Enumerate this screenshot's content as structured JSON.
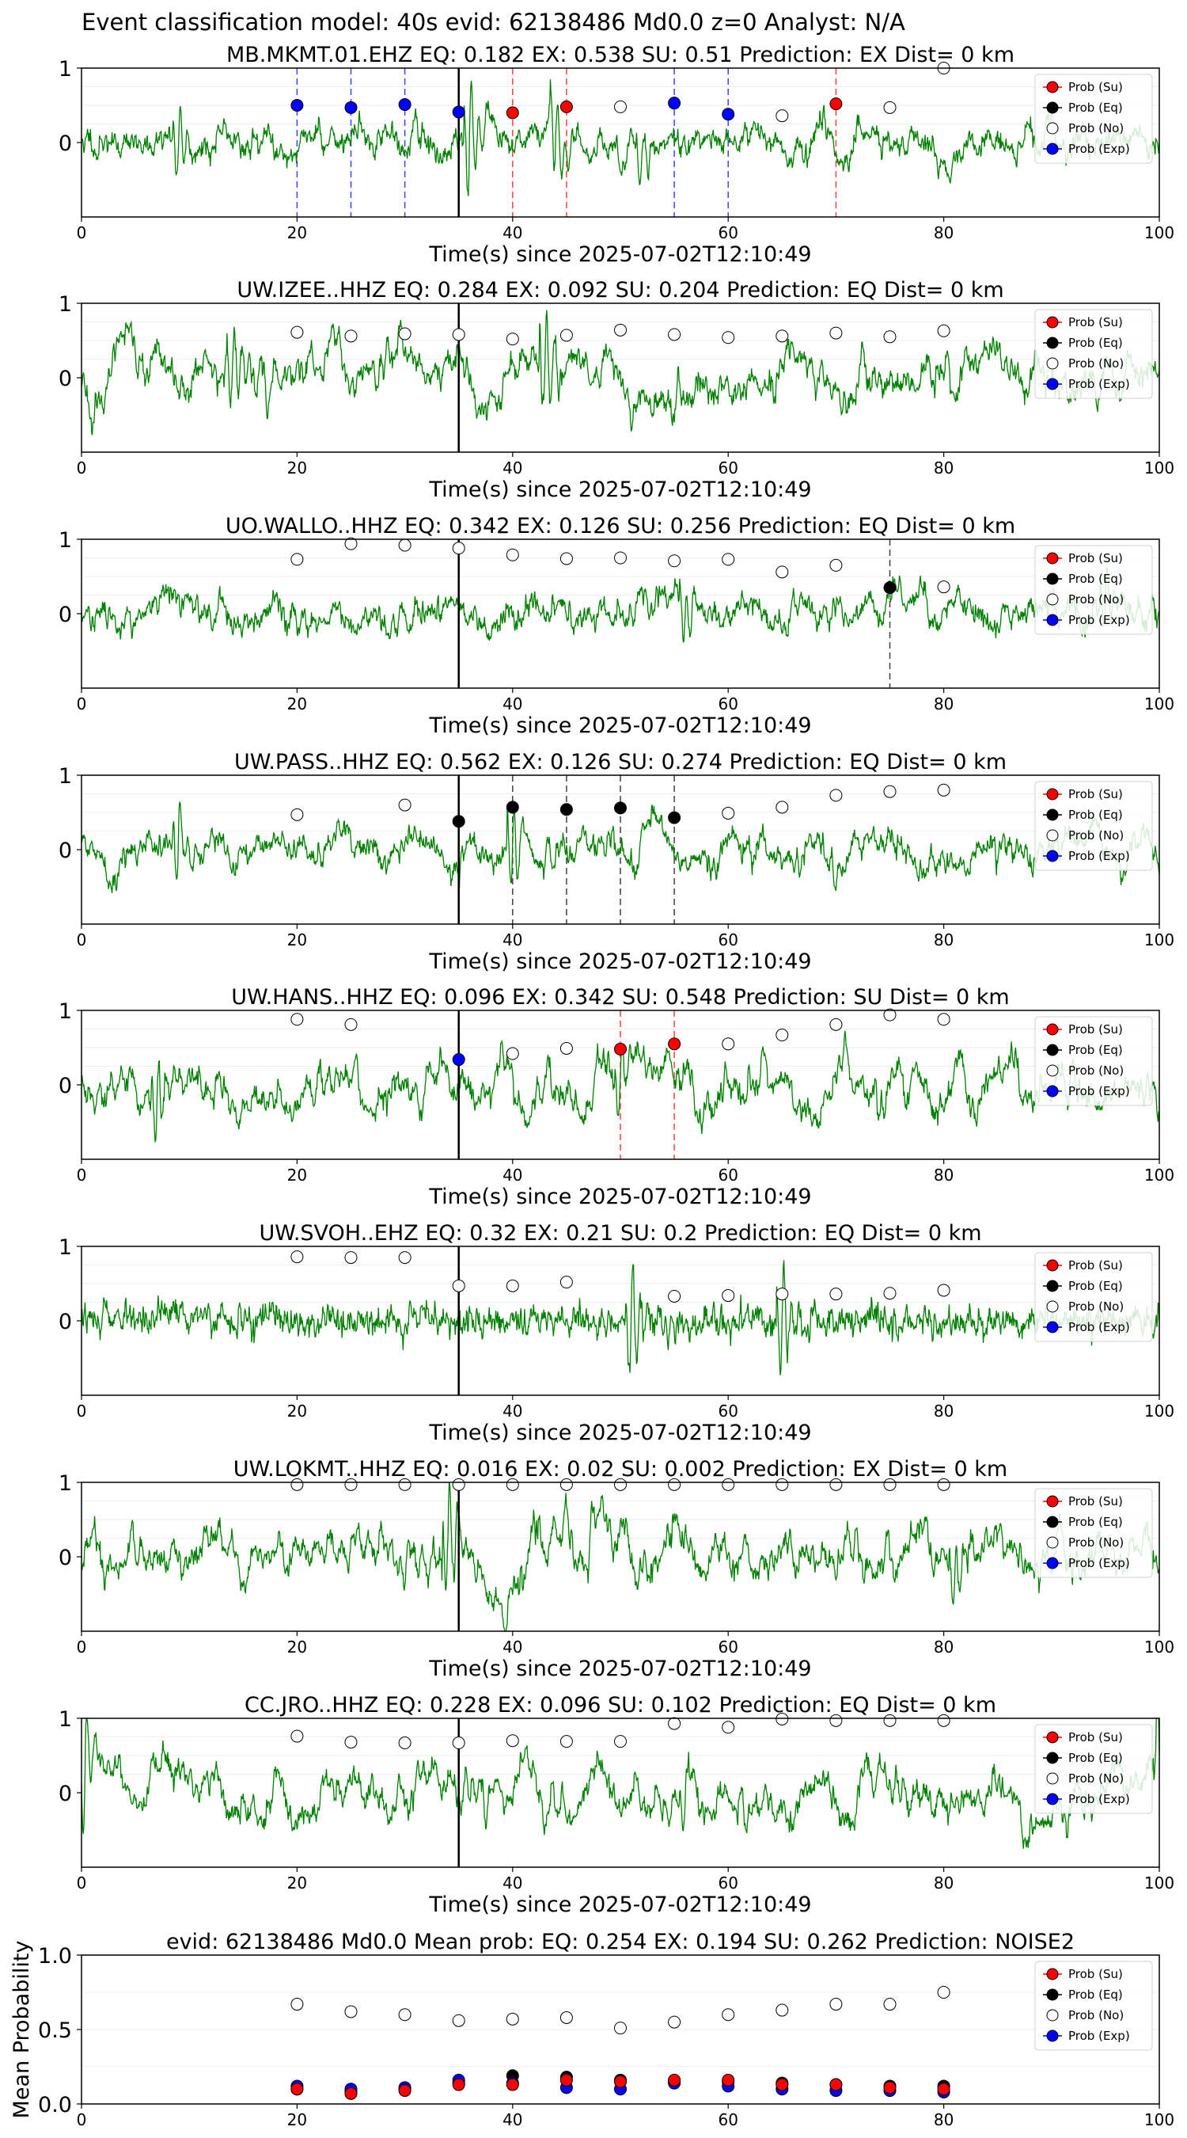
{
  "suptitle": "Event classification model: 40s evid: 62138486 Md0.0 z=0 Analyst: N/A",
  "xlabel": "Time(s) since 2025-07-02T12:10:49",
  "legend_labels": [
    "Prob (Su)",
    "Prob (Eq)",
    "Prob (No)",
    "Prob (Exp)"
  ],
  "colors": {
    "su": "#ff0000",
    "eq": "#000000",
    "no": "#ffffff",
    "exp": "#0000ff",
    "trace": "#008000"
  },
  "chart_data": [
    {
      "type": "line",
      "title": "MB.MKMT.01.EHZ    EQ: 0.182  EX: 0.538  SU: 0.51   Prediction: EX    Dist= 0 km",
      "xlim": [
        0,
        100
      ],
      "ylim": [
        -1,
        1
      ],
      "xticks": [
        "0",
        "20",
        "40",
        "60",
        "80",
        "100"
      ],
      "yticks": [
        "1",
        "0"
      ],
      "pick": 35,
      "seed": 11,
      "noise": "mixed",
      "bursts": [
        [
          9,
          0.5
        ],
        [
          36,
          1.0
        ],
        [
          44,
          0.6
        ],
        [
          52,
          0.4
        ]
      ],
      "points": [
        {
          "x": 20,
          "p": 0.5,
          "c": "exp"
        },
        {
          "x": 25,
          "p": 0.47,
          "c": "exp"
        },
        {
          "x": 30,
          "p": 0.51,
          "c": "exp"
        },
        {
          "x": 35,
          "p": 0.41,
          "c": "exp"
        },
        {
          "x": 40,
          "p": 0.4,
          "c": "su"
        },
        {
          "x": 45,
          "p": 0.48,
          "c": "su"
        },
        {
          "x": 50,
          "p": 0.48,
          "c": "no"
        },
        {
          "x": 55,
          "p": 0.53,
          "c": "exp"
        },
        {
          "x": 60,
          "p": 0.38,
          "c": "exp"
        },
        {
          "x": 65,
          "p": 0.36,
          "c": "no"
        },
        {
          "x": 70,
          "p": 0.52,
          "c": "su"
        },
        {
          "x": 75,
          "p": 0.47,
          "c": "no"
        },
        {
          "x": 80,
          "p": 1.0,
          "c": "no"
        }
      ]
    },
    {
      "type": "line",
      "title": "UW.IZEE..HHZ   EQ: 0.284  EX: 0.092  SU: 0.204   Prediction: EQ    Dist= 0 km",
      "xlim": [
        0,
        100
      ],
      "ylim": [
        -1,
        1
      ],
      "xticks": [
        "0",
        "20",
        "40",
        "60",
        "80",
        "100"
      ],
      "yticks": [
        "1",
        "0"
      ],
      "pick": 35,
      "seed": 23,
      "noise": "slow",
      "bursts": [
        [
          14,
          0.6
        ],
        [
          43,
          0.7
        ]
      ],
      "points": [
        {
          "x": 20,
          "p": 0.61,
          "c": "no"
        },
        {
          "x": 25,
          "p": 0.56,
          "c": "no"
        },
        {
          "x": 30,
          "p": 0.59,
          "c": "no"
        },
        {
          "x": 35,
          "p": 0.58,
          "c": "no"
        },
        {
          "x": 40,
          "p": 0.52,
          "c": "no"
        },
        {
          "x": 45,
          "p": 0.57,
          "c": "no"
        },
        {
          "x": 50,
          "p": 0.64,
          "c": "no"
        },
        {
          "x": 55,
          "p": 0.58,
          "c": "no"
        },
        {
          "x": 60,
          "p": 0.54,
          "c": "no"
        },
        {
          "x": 65,
          "p": 0.56,
          "c": "no"
        },
        {
          "x": 70,
          "p": 0.6,
          "c": "no"
        },
        {
          "x": 75,
          "p": 0.55,
          "c": "no"
        },
        {
          "x": 80,
          "p": 0.63,
          "c": "no"
        }
      ]
    },
    {
      "type": "line",
      "title": "UO.WALLO..HHZ   EQ: 0.342  EX: 0.126  SU: 0.256   Prediction: EQ    Dist= 0 km",
      "xlim": [
        0,
        100
      ],
      "ylim": [
        -1,
        1
      ],
      "xticks": [
        "0",
        "20",
        "40",
        "60",
        "80",
        "100"
      ],
      "yticks": [
        "1",
        "0"
      ],
      "pick": 35,
      "seed": 37,
      "noise": "mixed",
      "bursts": [
        [
          56,
          0.5
        ],
        [
          95,
          0.5
        ]
      ],
      "points": [
        {
          "x": 20,
          "p": 0.73,
          "c": "no"
        },
        {
          "x": 25,
          "p": 0.94,
          "c": "no"
        },
        {
          "x": 30,
          "p": 0.92,
          "c": "no"
        },
        {
          "x": 35,
          "p": 0.88,
          "c": "no"
        },
        {
          "x": 40,
          "p": 0.79,
          "c": "no"
        },
        {
          "x": 45,
          "p": 0.74,
          "c": "no"
        },
        {
          "x": 50,
          "p": 0.75,
          "c": "no"
        },
        {
          "x": 55,
          "p": 0.71,
          "c": "no"
        },
        {
          "x": 60,
          "p": 0.73,
          "c": "no"
        },
        {
          "x": 65,
          "p": 0.56,
          "c": "no"
        },
        {
          "x": 70,
          "p": 0.65,
          "c": "no"
        },
        {
          "x": 75,
          "p": 0.35,
          "c": "eq"
        },
        {
          "x": 80,
          "p": 0.36,
          "c": "no"
        }
      ]
    },
    {
      "type": "line",
      "title": "UW.PASS..HHZ   EQ: 0.562  EX: 0.126  SU: 0.274   Prediction: EQ    Dist= 0 km",
      "xlim": [
        0,
        100
      ],
      "ylim": [
        -1,
        1
      ],
      "xticks": [
        "0",
        "20",
        "40",
        "60",
        "80",
        "100"
      ],
      "yticks": [
        "1",
        "0"
      ],
      "pick": 35,
      "seed": 41,
      "noise": "mixed",
      "bursts": [
        [
          9,
          0.5
        ],
        [
          40,
          0.7
        ]
      ],
      "points": [
        {
          "x": 20,
          "p": 0.47,
          "c": "no"
        },
        {
          "x": 30,
          "p": 0.6,
          "c": "no"
        },
        {
          "x": 35,
          "p": 0.38,
          "c": "eq"
        },
        {
          "x": 40,
          "p": 0.57,
          "c": "eq"
        },
        {
          "x": 45,
          "p": 0.54,
          "c": "eq"
        },
        {
          "x": 50,
          "p": 0.56,
          "c": "eq"
        },
        {
          "x": 55,
          "p": 0.43,
          "c": "eq"
        },
        {
          "x": 60,
          "p": 0.49,
          "c": "no"
        },
        {
          "x": 65,
          "p": 0.57,
          "c": "no"
        },
        {
          "x": 70,
          "p": 0.73,
          "c": "no"
        },
        {
          "x": 75,
          "p": 0.78,
          "c": "no"
        },
        {
          "x": 80,
          "p": 0.8,
          "c": "no"
        }
      ]
    },
    {
      "type": "line",
      "title": "UW.HANS..HHZ   EQ: 0.096  EX: 0.342  SU: 0.548   Prediction: SU    Dist= 0 km",
      "xlim": [
        0,
        100
      ],
      "ylim": [
        -1,
        1
      ],
      "xticks": [
        "0",
        "20",
        "40",
        "60",
        "80",
        "100"
      ],
      "yticks": [
        "1",
        "0"
      ],
      "pick": 35,
      "seed": 53,
      "noise": "slow",
      "bursts": [
        [
          7,
          0.6
        ],
        [
          50,
          0.5
        ]
      ],
      "points": [
        {
          "x": 20,
          "p": 0.88,
          "c": "no"
        },
        {
          "x": 25,
          "p": 0.81,
          "c": "no"
        },
        {
          "x": 35,
          "p": 0.34,
          "c": "exp"
        },
        {
          "x": 40,
          "p": 0.42,
          "c": "no"
        },
        {
          "x": 45,
          "p": 0.49,
          "c": "no"
        },
        {
          "x": 50,
          "p": 0.48,
          "c": "su"
        },
        {
          "x": 55,
          "p": 0.55,
          "c": "su"
        },
        {
          "x": 60,
          "p": 0.55,
          "c": "no"
        },
        {
          "x": 65,
          "p": 0.67,
          "c": "no"
        },
        {
          "x": 70,
          "p": 0.81,
          "c": "no"
        },
        {
          "x": 75,
          "p": 0.94,
          "c": "no"
        },
        {
          "x": 80,
          "p": 0.88,
          "c": "no"
        }
      ]
    },
    {
      "type": "line",
      "title": "UW.SVOH..EHZ   EQ: 0.32  EX: 0.21  SU: 0.2   Prediction: EQ    Dist= 0 km",
      "xlim": [
        0,
        100
      ],
      "ylim": [
        -1,
        1
      ],
      "xticks": [
        "0",
        "20",
        "40",
        "60",
        "80",
        "100"
      ],
      "yticks": [
        "1",
        "0"
      ],
      "pick": 35,
      "seed": 67,
      "noise": "fast",
      "bursts": [
        [
          51,
          0.8
        ],
        [
          65,
          0.9
        ]
      ],
      "points": [
        {
          "x": 20,
          "p": 0.86,
          "c": "no"
        },
        {
          "x": 25,
          "p": 0.85,
          "c": "no"
        },
        {
          "x": 30,
          "p": 0.85,
          "c": "no"
        },
        {
          "x": 35,
          "p": 0.47,
          "c": "no"
        },
        {
          "x": 40,
          "p": 0.47,
          "c": "no"
        },
        {
          "x": 45,
          "p": 0.52,
          "c": "no"
        },
        {
          "x": 55,
          "p": 0.33,
          "c": "no"
        },
        {
          "x": 60,
          "p": 0.34,
          "c": "no"
        },
        {
          "x": 65,
          "p": 0.36,
          "c": "no"
        },
        {
          "x": 70,
          "p": 0.36,
          "c": "no"
        },
        {
          "x": 75,
          "p": 0.37,
          "c": "no"
        },
        {
          "x": 80,
          "p": 0.41,
          "c": "no"
        }
      ]
    },
    {
      "type": "line",
      "title": "UW.LOKMT..HHZ   EQ: 0.016  EX: 0.02  SU: 0.002   Prediction: EX    Dist= 0 km",
      "xlim": [
        0,
        100
      ],
      "ylim": [
        -1,
        1
      ],
      "xticks": [
        "0",
        "20",
        "40",
        "60",
        "80",
        "100"
      ],
      "yticks": [
        "1",
        "0"
      ],
      "pick": 35,
      "seed": 79,
      "noise": "slow",
      "bursts": [
        [
          34,
          0.8
        ],
        [
          81,
          0.6
        ]
      ],
      "points": [
        {
          "x": 20,
          "p": 0.97,
          "c": "no"
        },
        {
          "x": 25,
          "p": 0.97,
          "c": "no"
        },
        {
          "x": 30,
          "p": 0.97,
          "c": "no"
        },
        {
          "x": 35,
          "p": 0.97,
          "c": "no"
        },
        {
          "x": 40,
          "p": 0.97,
          "c": "no"
        },
        {
          "x": 45,
          "p": 0.97,
          "c": "no"
        },
        {
          "x": 50,
          "p": 0.97,
          "c": "no"
        },
        {
          "x": 55,
          "p": 0.97,
          "c": "no"
        },
        {
          "x": 60,
          "p": 0.97,
          "c": "no"
        },
        {
          "x": 65,
          "p": 0.97,
          "c": "no"
        },
        {
          "x": 70,
          "p": 0.97,
          "c": "no"
        },
        {
          "x": 75,
          "p": 0.97,
          "c": "no"
        },
        {
          "x": 80,
          "p": 0.97,
          "c": "no"
        }
      ]
    },
    {
      "type": "line",
      "title": "CC.JRO..HHZ   EQ: 0.228  EX: 0.096  SU: 0.102   Prediction: EQ    Dist= 0 km",
      "xlim": [
        0,
        100
      ],
      "ylim": [
        -1,
        1
      ],
      "xticks": [
        "0",
        "20",
        "40",
        "60",
        "80",
        "100"
      ],
      "yticks": [
        "1",
        "0"
      ],
      "pick": 35,
      "seed": 97,
      "noise": "slow",
      "bursts": [
        [
          0,
          -1.0
        ],
        [
          56,
          0.4
        ],
        [
          100,
          -1.0
        ]
      ],
      "points": [
        {
          "x": 20,
          "p": 0.76,
          "c": "no"
        },
        {
          "x": 25,
          "p": 0.68,
          "c": "no"
        },
        {
          "x": 30,
          "p": 0.67,
          "c": "no"
        },
        {
          "x": 35,
          "p": 0.67,
          "c": "no"
        },
        {
          "x": 40,
          "p": 0.7,
          "c": "no"
        },
        {
          "x": 45,
          "p": 0.69,
          "c": "no"
        },
        {
          "x": 50,
          "p": 0.69,
          "c": "no"
        },
        {
          "x": 55,
          "p": 0.93,
          "c": "no"
        },
        {
          "x": 60,
          "p": 0.88,
          "c": "no"
        },
        {
          "x": 65,
          "p": 0.99,
          "c": "no"
        },
        {
          "x": 70,
          "p": 0.97,
          "c": "no"
        },
        {
          "x": 75,
          "p": 0.97,
          "c": "no"
        },
        {
          "x": 80,
          "p": 0.97,
          "c": "no"
        }
      ]
    },
    {
      "type": "scatter",
      "title": "evid: 62138486  Md0.0   Mean prob:    EQ: 0.254  EX: 0.194  SU: 0.262   Prediction: NOISE2",
      "ylabel": "Mean Probability",
      "xlim": [
        0,
        100
      ],
      "ylim": [
        0,
        1
      ],
      "xticks": [
        "0",
        "20",
        "40",
        "60",
        "80",
        "100"
      ],
      "yticks": [
        "1.0",
        "0.5",
        "0.0"
      ],
      "x": [
        20,
        25,
        30,
        35,
        40,
        45,
        50,
        55,
        60,
        65,
        70,
        75,
        80
      ],
      "series": [
        {
          "name": "Prob (No)",
          "key": "no",
          "values": [
            0.67,
            0.62,
            0.6,
            0.56,
            0.57,
            0.58,
            0.51,
            0.55,
            0.6,
            0.63,
            0.67,
            0.67,
            0.75
          ]
        },
        {
          "name": "Prob (Eq)",
          "key": "eq",
          "values": [
            0.1,
            0.08,
            0.1,
            0.14,
            0.19,
            0.18,
            0.16,
            0.15,
            0.15,
            0.14,
            0.13,
            0.12,
            0.12
          ]
        },
        {
          "name": "Prob (Exp)",
          "key": "exp",
          "values": [
            0.12,
            0.1,
            0.11,
            0.16,
            0.14,
            0.11,
            0.1,
            0.14,
            0.12,
            0.1,
            0.09,
            0.09,
            0.08
          ]
        },
        {
          "name": "Prob (Su)",
          "key": "su",
          "values": [
            0.1,
            0.07,
            0.09,
            0.13,
            0.13,
            0.16,
            0.15,
            0.16,
            0.16,
            0.13,
            0.13,
            0.11,
            0.1
          ]
        }
      ]
    }
  ]
}
